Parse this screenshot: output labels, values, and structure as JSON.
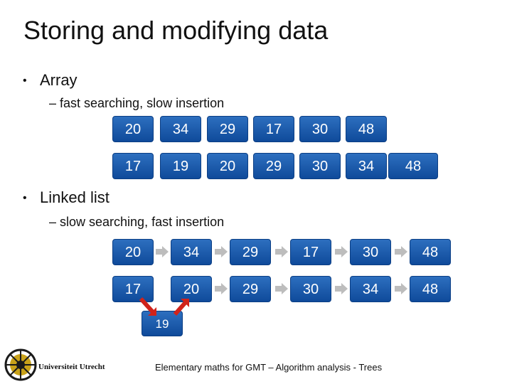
{
  "title": "Storing and modifying data",
  "array": {
    "heading": "Array",
    "sub": "– fast searching, slow insertion",
    "row1": [
      "20",
      "34",
      "29",
      "17",
      "30",
      "48"
    ],
    "row2": [
      "17",
      "19",
      "20",
      "29",
      "30",
      "34",
      "48"
    ]
  },
  "linked": {
    "heading": "Linked list",
    "sub": "– slow searching, fast insertion",
    "row1": [
      "20",
      "34",
      "29",
      "17",
      "30",
      "48"
    ],
    "row2": [
      "17",
      "20",
      "29",
      "30",
      "34",
      "48"
    ],
    "inserted": "19"
  },
  "footer": "Elementary maths for GMT – Algorithm analysis - Trees",
  "logo_text": "Universiteit Utrecht",
  "colors": {
    "node_fill": "#1f5fb0",
    "arrow": "#bdbdbd",
    "insert_arrow": "#d0231b"
  }
}
